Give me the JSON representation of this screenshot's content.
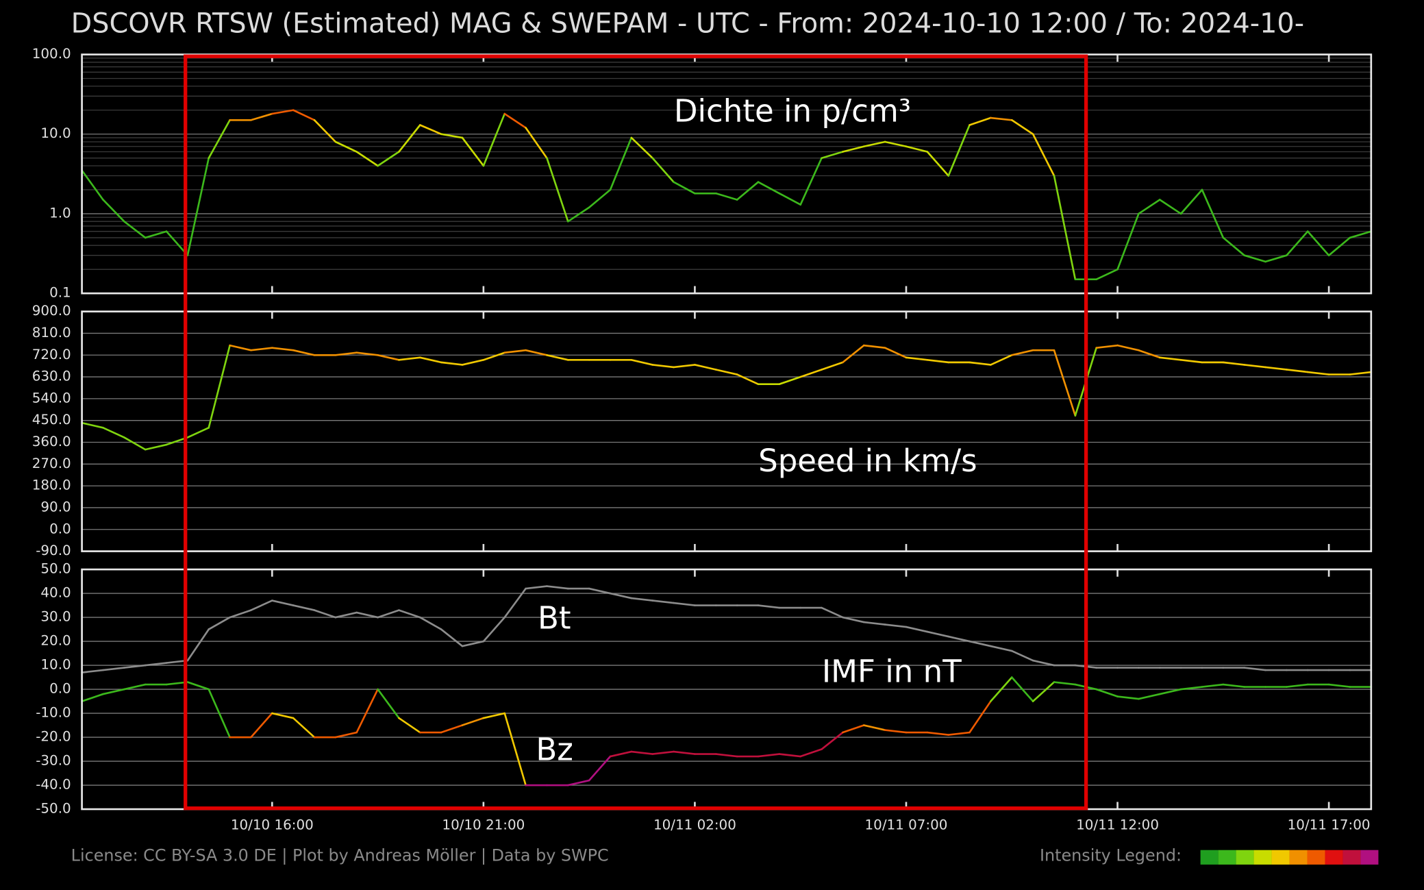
{
  "title": "DSCOVR RTSW (Estimated) MAG & SWEPAM - UTC - From: 2024-10-10 12:00  /  To: 2024-10-",
  "footer": "License: CC BY-SA 3.0 DE | Plot by Andreas Möller | Data by SWPC",
  "legend_title": "Intensity Legend:",
  "intensity_colors": [
    "#1f9e1f",
    "#3cb81c",
    "#7fd40f",
    "#c8dc00",
    "#f0c800",
    "#f09000",
    "#ee5a00",
    "#e01010",
    "#c0103c",
    "#b01080"
  ],
  "chart_data": {
    "type": "line",
    "x": [
      "10/10 11:30",
      "10/10 12:00",
      "10/10 12:30",
      "10/10 13:00",
      "10/10 13:30",
      "10/10 14:00",
      "10/10 14:30",
      "10/10 15:00",
      "10/10 15:30",
      "10/10 16:00",
      "10/10 16:30",
      "10/10 17:00",
      "10/10 17:30",
      "10/10 18:00",
      "10/10 18:30",
      "10/10 19:00",
      "10/10 19:30",
      "10/10 20:00",
      "10/10 20:30",
      "10/10 21:00",
      "10/10 21:30",
      "10/10 22:00",
      "10/10 22:30",
      "10/10 23:00",
      "10/10 23:30",
      "10/11 00:00",
      "10/11 00:30",
      "10/11 01:00",
      "10/11 01:30",
      "10/11 02:00",
      "10/11 02:30",
      "10/11 03:00",
      "10/11 03:30",
      "10/11 04:00",
      "10/11 04:30",
      "10/11 05:00",
      "10/11 05:30",
      "10/11 06:00",
      "10/11 06:30",
      "10/11 07:00",
      "10/11 07:30",
      "10/11 08:00",
      "10/11 08:30",
      "10/11 09:00",
      "10/11 09:30",
      "10/11 10:00",
      "10/11 10:30",
      "10/11 11:00",
      "10/11 11:30",
      "10/11 12:00",
      "10/11 12:30",
      "10/11 13:00",
      "10/11 13:30",
      "10/11 14:00",
      "10/11 14:30",
      "10/11 15:00",
      "10/11 15:30",
      "10/11 16:00",
      "10/11 16:30",
      "10/11 17:00",
      "10/11 17:30",
      "10/11 18:00"
    ],
    "xlim": [
      "10/10 11:30",
      "10/11 18:00"
    ],
    "xticks": [
      "10/10 16:00",
      "10/10 21:00",
      "10/11 02:00",
      "10/11 07:00",
      "10/11 12:00",
      "10/11 17:00"
    ],
    "panels": [
      {
        "annotation": "Dichte in p/cm³",
        "log": true,
        "grid": true,
        "minor_grid": true,
        "ylim": [
          0.1,
          100
        ],
        "yticks": [
          0.1,
          {
            "value": 1,
            "label": "1.0"
          },
          {
            "value": 10,
            "label": "10.0"
          },
          {
            "value": 100,
            "label": "100.0"
          }
        ],
        "series": [
          {
            "values": [
              3.5,
              1.5,
              0.8,
              0.5,
              0.6,
              0.3,
              5,
              15,
              15,
              18,
              20,
              15,
              8,
              6,
              4,
              6,
              13,
              10,
              9,
              4,
              18,
              12,
              5,
              0.8,
              1.2,
              2,
              9,
              5,
              2.5,
              1.8,
              1.8,
              1.5,
              2.5,
              1.8,
              1.3,
              5,
              6,
              7,
              8,
              7,
              6,
              3,
              13,
              16,
              15,
              10,
              3,
              0.15,
              0.15,
              0.2,
              1,
              1.5,
              1,
              2,
              0.5,
              0.3,
              0.25,
              0.3,
              0.6,
              0.3,
              0.5,
              0.6
            ],
            "intensity": [
              1,
              1,
              1,
              1,
              1,
              1,
              2,
              5,
              5,
              6,
              6,
              4,
              3,
              3,
              2,
              3,
              4,
              3,
              3,
              2,
              6,
              4,
              2,
              1,
              1,
              1,
              3,
              2,
              1,
              1,
              1,
              1,
              1,
              1,
              1,
              2,
              3,
              3,
              3,
              3,
              3,
              2,
              4,
              5,
              4,
              4,
              2,
              1,
              1,
              1,
              1,
              1,
              1,
              1,
              1,
              1,
              1,
              1,
              1,
              1,
              1,
              1
            ]
          }
        ]
      },
      {
        "annotation": "Speed in km/s",
        "log": false,
        "grid": true,
        "ylim": [
          -90,
          900
        ],
        "yticks": [
          {
            "value": -90,
            "label": "-90.0"
          },
          {
            "value": 0,
            "label": "0.0"
          },
          {
            "value": 90,
            "label": "90.0"
          },
          {
            "value": 180,
            "label": "180.0"
          },
          {
            "value": 270,
            "label": "270.0"
          },
          {
            "value": 360,
            "label": "360.0"
          },
          {
            "value": 450,
            "label": "450.0"
          },
          {
            "value": 540,
            "label": "540.0"
          },
          {
            "value": 630,
            "label": "630.0"
          },
          {
            "value": 720,
            "label": "720.0"
          },
          {
            "value": 810,
            "label": "810.0"
          },
          {
            "value": 900,
            "label": "900.0"
          }
        ],
        "series": [
          {
            "values": [
              440,
              420,
              380,
              330,
              350,
              380,
              420,
              760,
              740,
              750,
              740,
              720,
              720,
              730,
              720,
              700,
              710,
              690,
              680,
              700,
              730,
              740,
              720,
              700,
              700,
              700,
              700,
              680,
              670,
              680,
              660,
              640,
              600,
              600,
              630,
              660,
              690,
              760,
              750,
              710,
              700,
              690,
              690,
              680,
              720,
              740,
              740,
              470,
              750,
              760,
              740,
              710,
              700,
              690,
              690,
              680,
              670,
              660,
              650,
              640,
              640,
              650
            ],
            "intensity": [
              2,
              2,
              2,
              2,
              2,
              2,
              2,
              5,
              5,
              5,
              5,
              5,
              5,
              5,
              5,
              4,
              4,
              4,
              4,
              4,
              5,
              5,
              4,
              4,
              4,
              4,
              4,
              4,
              4,
              4,
              4,
              4,
              3,
              3,
              4,
              4,
              5,
              5,
              5,
              4,
              4,
              4,
              4,
              4,
              5,
              5,
              5,
              2,
              5,
              5,
              5,
              4,
              4,
              4,
              4,
              4,
              4,
              4,
              4,
              4,
              4,
              4
            ]
          }
        ]
      },
      {
        "annotation": "IMF in nT",
        "log": false,
        "grid": true,
        "ylim": [
          -50,
          50
        ],
        "yticks": [
          {
            "value": -50,
            "label": "-50.0"
          },
          {
            "value": -40,
            "label": "-40.0"
          },
          {
            "value": -30,
            "label": "-30.0"
          },
          {
            "value": -20,
            "label": "-20.0"
          },
          {
            "value": -10,
            "label": "-10.0"
          },
          {
            "value": 0,
            "label": "0.0"
          },
          {
            "value": 10,
            "label": "10.0"
          },
          {
            "value": 20,
            "label": "20.0"
          },
          {
            "value": 30,
            "label": "30.0"
          },
          {
            "value": 40,
            "label": "40.0"
          },
          {
            "value": 50,
            "label": "50.0"
          }
        ],
        "series": [
          {
            "name": "Bt",
            "color": "#8c8c8c",
            "values": [
              7,
              8,
              9,
              10,
              11,
              12,
              25,
              30,
              33,
              37,
              35,
              33,
              30,
              32,
              30,
              33,
              30,
              25,
              18,
              20,
              30,
              42,
              43,
              42,
              42,
              40,
              38,
              37,
              36,
              35,
              35,
              35,
              35,
              34,
              34,
              34,
              30,
              28,
              27,
              26,
              24,
              22,
              20,
              18,
              16,
              12,
              10,
              10,
              9,
              9,
              9,
              9,
              9,
              9,
              9,
              9,
              8,
              8,
              8,
              8,
              8,
              8
            ]
          },
          {
            "name": "Bz",
            "values": [
              -5,
              -2,
              0,
              2,
              2,
              3,
              0,
              -20,
              -20,
              -10,
              -12,
              -20,
              -20,
              -18,
              0,
              -12,
              -18,
              -18,
              -15,
              -12,
              -10,
              -40,
              -40,
              -40,
              -38,
              -28,
              -26,
              -27,
              -26,
              -27,
              -27,
              -28,
              -28,
              -27,
              -28,
              -25,
              -18,
              -15,
              -17,
              -18,
              -18,
              -19,
              -18,
              -5,
              5,
              -5,
              3,
              2,
              0,
              -3,
              -4,
              -2,
              0,
              1,
              2,
              1,
              1,
              1,
              2,
              2,
              1,
              1
            ],
            "intensity": [
              1,
              1,
              1,
              1,
              1,
              1,
              1,
              6,
              6,
              4,
              4,
              6,
              6,
              6,
              1,
              4,
              6,
              6,
              5,
              4,
              4,
              9,
              9,
              9,
              9,
              8,
              8,
              8,
              8,
              8,
              8,
              8,
              8,
              8,
              8,
              8,
              6,
              5,
              6,
              6,
              6,
              6,
              6,
              2,
              1,
              2,
              1,
              1,
              1,
              1,
              1,
              1,
              1,
              1,
              1,
              1,
              1,
              1,
              1,
              1,
              1,
              1
            ]
          }
        ]
      }
    ]
  }
}
